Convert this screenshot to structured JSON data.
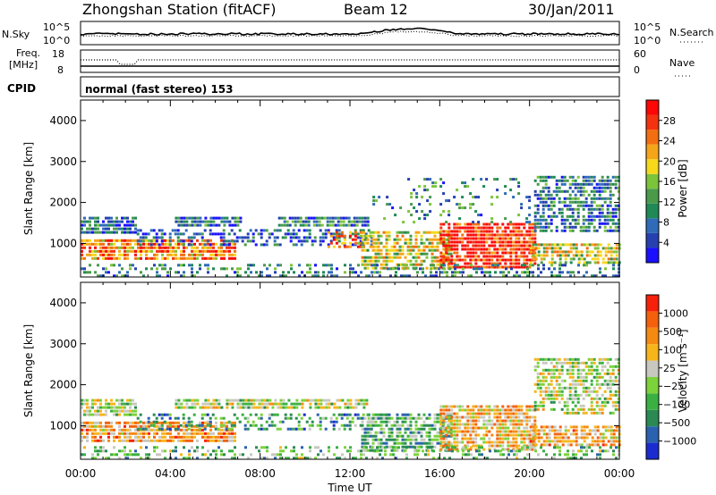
{
  "header": {
    "station": "Zhongshan Station (fitACF)",
    "beam": "Beam 12",
    "date": "30/Jan/2011"
  },
  "noise_panel": {
    "left_label": "N.Sky",
    "right_label": "N.Search",
    "left_ticks": [
      "10^5",
      "10^0"
    ],
    "right_ticks": [
      "10^5",
      "10^0"
    ]
  },
  "freq_panel": {
    "left_label_1": "Freq.",
    "left_label_2": "[MHz]",
    "right_label": "Nave",
    "left_ticks": [
      "18",
      "8"
    ],
    "right_ticks": [
      "60",
      "0"
    ]
  },
  "cpid": {
    "label": "CPID",
    "text": "normal (fast stereo) 153"
  },
  "chart_data": [
    {
      "type": "heatmap",
      "panel": "power",
      "ylabel": "Slant Range [km]",
      "ylim": [
        180,
        4500
      ],
      "yticks": [
        "1000",
        "2000",
        "3000",
        "4000"
      ],
      "xlim_hours": [
        0,
        24
      ],
      "colorbar": {
        "label": "Power [dB]",
        "ticks": [
          "4",
          "8",
          "12",
          "16",
          "20",
          "24",
          "28"
        ],
        "colors": [
          "#1a10ff",
          "#2640b0",
          "#2f6bb8",
          "#1f8a55",
          "#4a9a4a",
          "#7cc43a",
          "#f7d81a",
          "#f5a51a",
          "#f26e10",
          "#f43210",
          "#fc0606"
        ]
      },
      "regions": [
        {
          "t0": 0.0,
          "t1": 6.9,
          "r0": 600,
          "r1": 1100,
          "level": 0.75,
          "density": 0.8
        },
        {
          "t0": 0.0,
          "t1": 2.5,
          "r0": 1300,
          "r1": 1650,
          "level": 0.25,
          "density": 0.8
        },
        {
          "t0": 2.5,
          "t1": 13.0,
          "r0": 1000,
          "r1": 1350,
          "level": 0.2,
          "density": 0.45
        },
        {
          "t0": 4.2,
          "t1": 7.1,
          "r0": 1450,
          "r1": 1650,
          "level": 0.25,
          "density": 0.85
        },
        {
          "t0": 8.8,
          "t1": 12.8,
          "r0": 1450,
          "r1": 1650,
          "level": 0.3,
          "density": 0.8
        },
        {
          "t0": 11.0,
          "t1": 12.6,
          "r0": 950,
          "r1": 1300,
          "level": 0.75,
          "density": 0.6
        },
        {
          "t0": 12.5,
          "t1": 16.5,
          "r0": 400,
          "r1": 1300,
          "level": 0.55,
          "density": 0.7
        },
        {
          "t0": 16.0,
          "t1": 20.2,
          "r0": 450,
          "r1": 1500,
          "level": 0.9,
          "density": 0.85
        },
        {
          "t0": 20.0,
          "t1": 24.0,
          "r0": 500,
          "r1": 1000,
          "level": 0.55,
          "density": 0.7
        },
        {
          "t0": 20.2,
          "t1": 24.0,
          "r0": 1300,
          "r1": 2650,
          "level": 0.28,
          "density": 0.65
        },
        {
          "t0": 0.0,
          "t1": 24.0,
          "r0": 200,
          "r1": 500,
          "level": 0.3,
          "density": 0.35
        },
        {
          "t0": 13.0,
          "t1": 20.0,
          "r0": 1500,
          "r1": 2600,
          "level": 0.3,
          "density": 0.15
        }
      ]
    },
    {
      "type": "heatmap",
      "panel": "velocity",
      "ylabel": "Slant Range [km]",
      "ylim": [
        180,
        4500
      ],
      "yticks": [
        "1000",
        "2000",
        "3000",
        "4000"
      ],
      "xlim_hours": [
        0,
        24
      ],
      "xticks": [
        "00:00",
        "04:00",
        "08:00",
        "12:00",
        "16:00",
        "20:00",
        "00:00"
      ],
      "xlabel": "Time UT",
      "colorbar": {
        "label": "Velocity [m s⁻¹]",
        "ticks": [
          "1000",
          "500",
          "100",
          "25",
          "−25",
          "−100",
          "−500",
          "−1000"
        ],
        "colors": [
          "#1a2cd0",
          "#2a62b0",
          "#2b8a54",
          "#3ab043",
          "#7cd23a",
          "#c8c8c0",
          "#f7b51c",
          "#f58a12",
          "#f4600c",
          "#f7200a"
        ]
      },
      "regions": [
        {
          "t0": 0.0,
          "t1": 6.9,
          "r0": 600,
          "r1": 1100,
          "level": 0.72,
          "density": 0.8
        },
        {
          "t0": 0.0,
          "t1": 2.5,
          "r0": 1300,
          "r1": 1650,
          "level": 0.5,
          "density": 0.8
        },
        {
          "t0": 4.2,
          "t1": 12.8,
          "r0": 1450,
          "r1": 1650,
          "level": 0.5,
          "density": 0.8
        },
        {
          "t0": 2.5,
          "t1": 13.0,
          "r0": 950,
          "r1": 1300,
          "level": 0.3,
          "density": 0.45
        },
        {
          "t0": 12.5,
          "t1": 16.5,
          "r0": 400,
          "r1": 1300,
          "level": 0.35,
          "density": 0.7
        },
        {
          "t0": 16.0,
          "t1": 20.2,
          "r0": 450,
          "r1": 1500,
          "level": 0.65,
          "density": 0.8
        },
        {
          "t0": 20.0,
          "t1": 24.0,
          "r0": 500,
          "r1": 1000,
          "level": 0.7,
          "density": 0.7
        },
        {
          "t0": 20.2,
          "t1": 24.0,
          "r0": 1300,
          "r1": 2650,
          "level": 0.5,
          "density": 0.65
        },
        {
          "t0": 0.0,
          "t1": 24.0,
          "r0": 200,
          "r1": 500,
          "level": 0.4,
          "density": 0.35
        }
      ]
    }
  ]
}
